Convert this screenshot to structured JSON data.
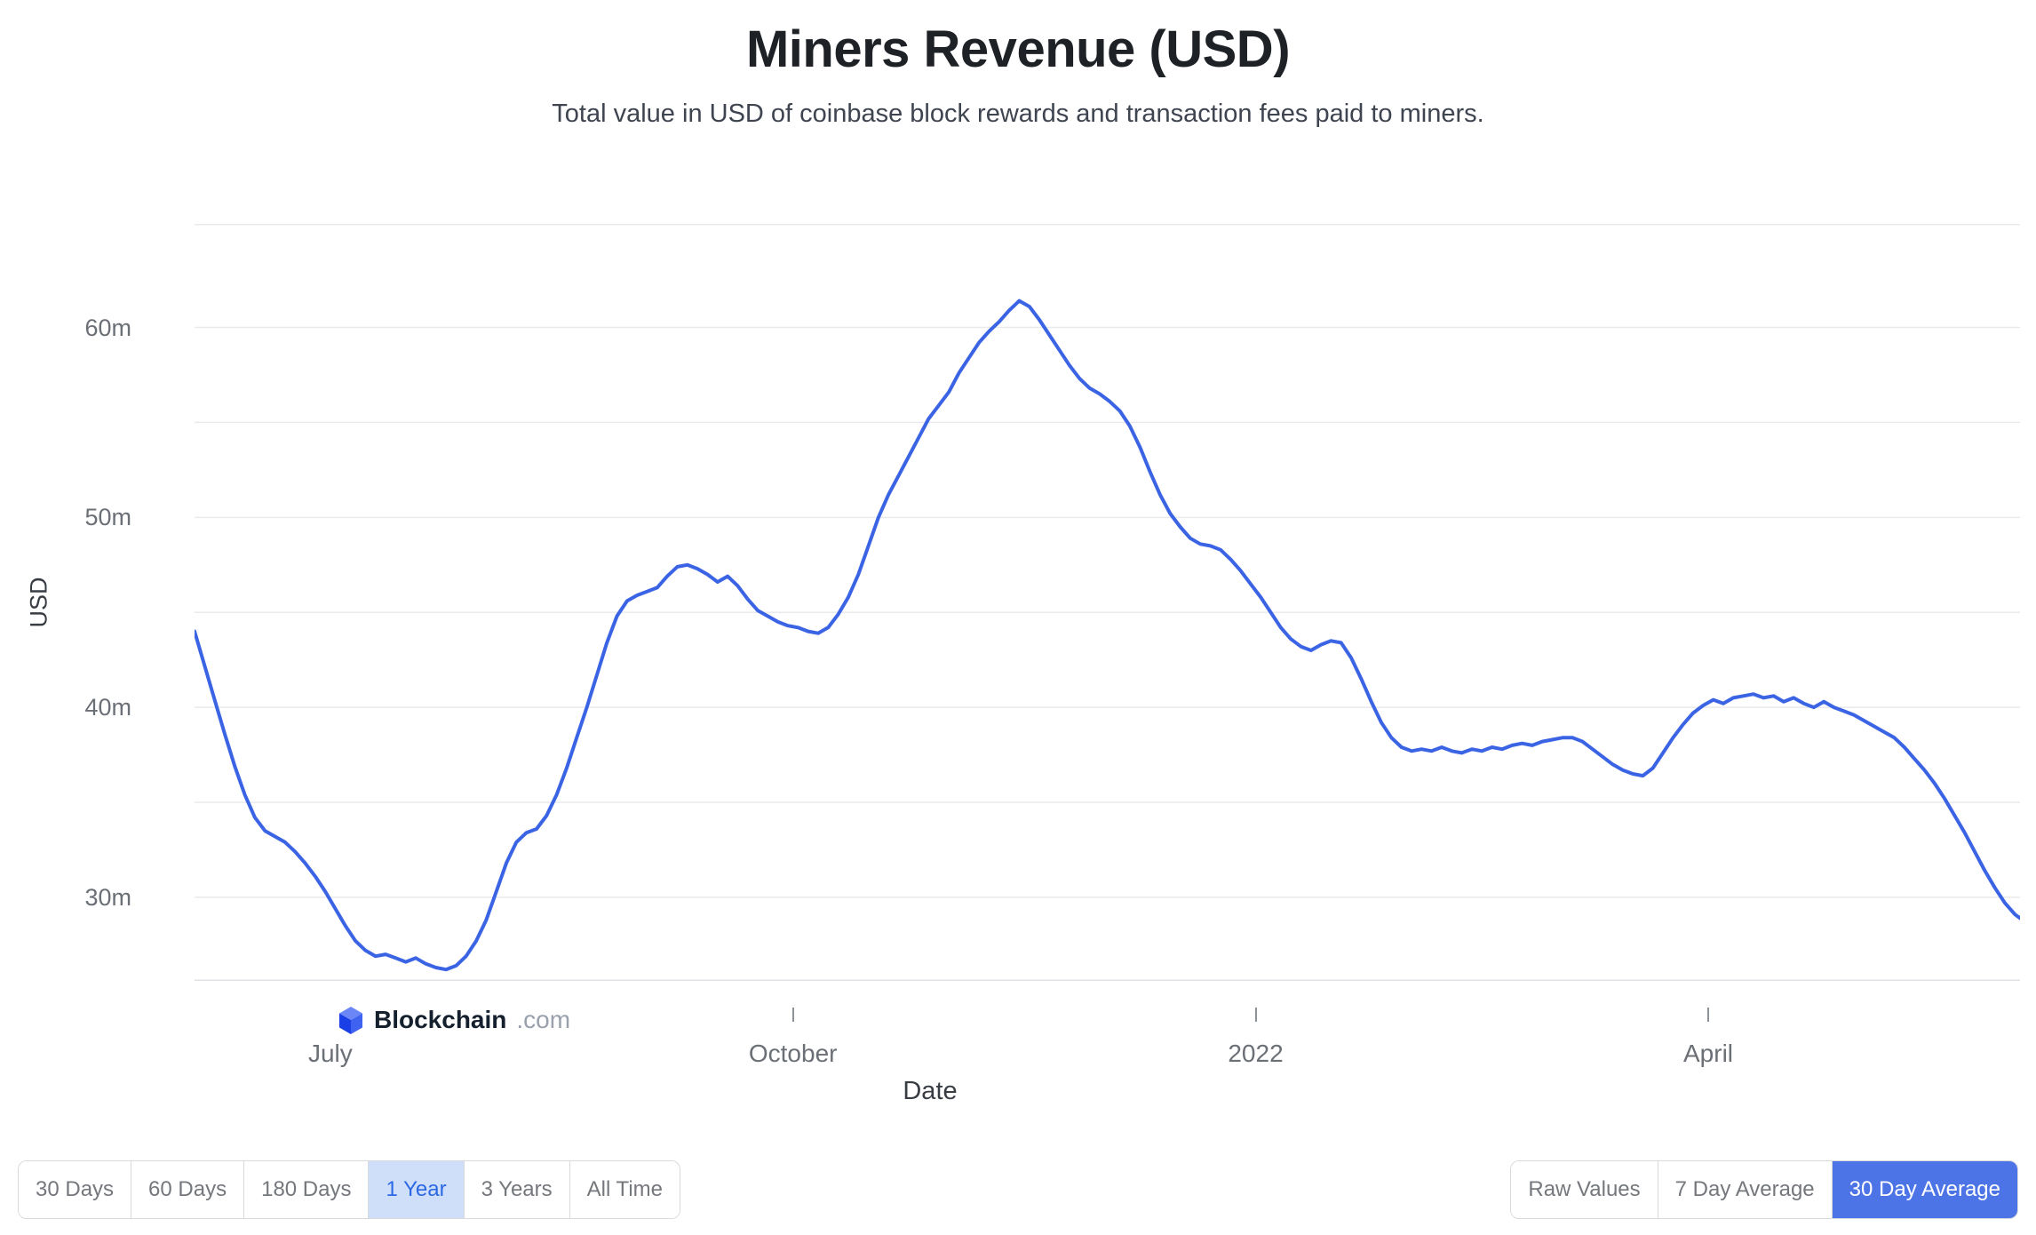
{
  "header": {
    "title": "Miners Revenue (USD)",
    "subtitle": "Total value in USD of coinbase block rewards and transaction fees paid to miners."
  },
  "watermark": {
    "brand": "Blockchain",
    "suffix": ".com"
  },
  "chart_data": {
    "type": "line",
    "title": "Miners Revenue (USD)",
    "subtitle": "Total value in USD of coinbase block rewards and transaction fees paid to miners.",
    "xlabel": "Date",
    "ylabel": "USD",
    "unit": "million USD per day (30 day average)",
    "series_name": "Miners Revenue",
    "line_color": "#3b64e4",
    "grid": true,
    "legend": "none",
    "x_unit": "days from chart start (1 year span, mid-2021 to mid-2022)",
    "x_range_days": [
      0,
      363
    ],
    "ylim": [
      25.6,
      65.45
    ],
    "y_gridlines": [
      30,
      35,
      40,
      45,
      50,
      55,
      60
    ],
    "y_ticks": [
      {
        "value": 30,
        "label": "30m"
      },
      {
        "value": 40,
        "label": "40m"
      },
      {
        "value": 50,
        "label": "50m"
      },
      {
        "value": 60,
        "label": "60m"
      }
    ],
    "x_ticks": [
      {
        "day": 27,
        "label": "July",
        "tick_mark": false
      },
      {
        "day": 119,
        "label": "October",
        "tick_mark": true
      },
      {
        "day": 211,
        "label": "2022",
        "tick_mark": true
      },
      {
        "day": 301,
        "label": "April",
        "tick_mark": true
      }
    ],
    "points": [
      [
        0,
        44.0
      ],
      [
        2,
        42.2
      ],
      [
        4,
        40.4
      ],
      [
        6,
        38.6
      ],
      [
        8,
        36.9
      ],
      [
        10,
        35.4
      ],
      [
        12,
        34.2
      ],
      [
        14,
        33.5
      ],
      [
        16,
        33.2
      ],
      [
        18,
        32.9
      ],
      [
        20,
        32.4
      ],
      [
        22,
        31.8
      ],
      [
        24,
        31.1
      ],
      [
        26,
        30.3
      ],
      [
        28,
        29.4
      ],
      [
        30,
        28.5
      ],
      [
        32,
        27.7
      ],
      [
        34,
        27.2
      ],
      [
        36,
        26.9
      ],
      [
        38,
        27.0
      ],
      [
        40,
        26.8
      ],
      [
        42,
        26.6
      ],
      [
        44,
        26.8
      ],
      [
        46,
        26.5
      ],
      [
        48,
        26.3
      ],
      [
        50,
        26.2
      ],
      [
        52,
        26.4
      ],
      [
        54,
        26.9
      ],
      [
        56,
        27.7
      ],
      [
        58,
        28.8
      ],
      [
        60,
        30.3
      ],
      [
        62,
        31.8
      ],
      [
        64,
        32.9
      ],
      [
        66,
        33.4
      ],
      [
        68,
        33.6
      ],
      [
        70,
        34.3
      ],
      [
        72,
        35.4
      ],
      [
        74,
        36.8
      ],
      [
        76,
        38.4
      ],
      [
        78,
        40.0
      ],
      [
        80,
        41.7
      ],
      [
        82,
        43.4
      ],
      [
        84,
        44.8
      ],
      [
        86,
        45.6
      ],
      [
        88,
        45.9
      ],
      [
        90,
        46.1
      ],
      [
        92,
        46.3
      ],
      [
        94,
        46.9
      ],
      [
        96,
        47.4
      ],
      [
        98,
        47.5
      ],
      [
        100,
        47.3
      ],
      [
        102,
        47.0
      ],
      [
        104,
        46.6
      ],
      [
        106,
        46.9
      ],
      [
        108,
        46.4
      ],
      [
        110,
        45.7
      ],
      [
        112,
        45.1
      ],
      [
        114,
        44.8
      ],
      [
        116,
        44.5
      ],
      [
        118,
        44.3
      ],
      [
        120,
        44.2
      ],
      [
        122,
        44.0
      ],
      [
        124,
        43.9
      ],
      [
        126,
        44.2
      ],
      [
        128,
        44.9
      ],
      [
        130,
        45.8
      ],
      [
        132,
        47.0
      ],
      [
        134,
        48.5
      ],
      [
        136,
        50.0
      ],
      [
        138,
        51.2
      ],
      [
        140,
        52.2
      ],
      [
        142,
        53.2
      ],
      [
        144,
        54.2
      ],
      [
        146,
        55.2
      ],
      [
        148,
        55.9
      ],
      [
        150,
        56.6
      ],
      [
        152,
        57.6
      ],
      [
        154,
        58.4
      ],
      [
        156,
        59.2
      ],
      [
        158,
        59.8
      ],
      [
        160,
        60.3
      ],
      [
        162,
        60.9
      ],
      [
        164,
        61.4
      ],
      [
        166,
        61.1
      ],
      [
        168,
        60.4
      ],
      [
        170,
        59.6
      ],
      [
        172,
        58.8
      ],
      [
        174,
        58.0
      ],
      [
        176,
        57.3
      ],
      [
        178,
        56.8
      ],
      [
        180,
        56.5
      ],
      [
        182,
        56.1
      ],
      [
        184,
        55.6
      ],
      [
        186,
        54.8
      ],
      [
        188,
        53.7
      ],
      [
        190,
        52.4
      ],
      [
        192,
        51.2
      ],
      [
        194,
        50.2
      ],
      [
        196,
        49.5
      ],
      [
        198,
        48.9
      ],
      [
        200,
        48.6
      ],
      [
        202,
        48.5
      ],
      [
        204,
        48.3
      ],
      [
        206,
        47.8
      ],
      [
        208,
        47.2
      ],
      [
        210,
        46.5
      ],
      [
        212,
        45.8
      ],
      [
        214,
        45.0
      ],
      [
        216,
        44.2
      ],
      [
        218,
        43.6
      ],
      [
        220,
        43.2
      ],
      [
        222,
        43.0
      ],
      [
        224,
        43.3
      ],
      [
        226,
        43.5
      ],
      [
        228,
        43.4
      ],
      [
        230,
        42.6
      ],
      [
        232,
        41.5
      ],
      [
        234,
        40.3
      ],
      [
        236,
        39.2
      ],
      [
        238,
        38.4
      ],
      [
        240,
        37.9
      ],
      [
        242,
        37.7
      ],
      [
        244,
        37.8
      ],
      [
        246,
        37.7
      ],
      [
        248,
        37.9
      ],
      [
        250,
        37.7
      ],
      [
        252,
        37.6
      ],
      [
        254,
        37.8
      ],
      [
        256,
        37.7
      ],
      [
        258,
        37.9
      ],
      [
        260,
        37.8
      ],
      [
        262,
        38.0
      ],
      [
        264,
        38.1
      ],
      [
        266,
        38.0
      ],
      [
        268,
        38.2
      ],
      [
        270,
        38.3
      ],
      [
        272,
        38.4
      ],
      [
        274,
        38.4
      ],
      [
        276,
        38.2
      ],
      [
        278,
        37.8
      ],
      [
        280,
        37.4
      ],
      [
        282,
        37.0
      ],
      [
        284,
        36.7
      ],
      [
        286,
        36.5
      ],
      [
        288,
        36.4
      ],
      [
        290,
        36.8
      ],
      [
        292,
        37.6
      ],
      [
        294,
        38.4
      ],
      [
        296,
        39.1
      ],
      [
        298,
        39.7
      ],
      [
        300,
        40.1
      ],
      [
        302,
        40.4
      ],
      [
        304,
        40.2
      ],
      [
        306,
        40.5
      ],
      [
        308,
        40.6
      ],
      [
        310,
        40.7
      ],
      [
        312,
        40.5
      ],
      [
        314,
        40.6
      ],
      [
        316,
        40.3
      ],
      [
        318,
        40.5
      ],
      [
        320,
        40.2
      ],
      [
        322,
        40.0
      ],
      [
        324,
        40.3
      ],
      [
        326,
        40.0
      ],
      [
        328,
        39.8
      ],
      [
        330,
        39.6
      ],
      [
        332,
        39.3
      ],
      [
        334,
        39.0
      ],
      [
        336,
        38.7
      ],
      [
        338,
        38.4
      ],
      [
        340,
        37.9
      ],
      [
        342,
        37.3
      ],
      [
        344,
        36.7
      ],
      [
        346,
        36.0
      ],
      [
        348,
        35.2
      ],
      [
        350,
        34.3
      ],
      [
        352,
        33.4
      ],
      [
        354,
        32.4
      ],
      [
        356,
        31.4
      ],
      [
        358,
        30.5
      ],
      [
        360,
        29.7
      ],
      [
        362,
        29.1
      ],
      [
        363,
        28.9
      ]
    ]
  },
  "controls": {
    "range_buttons": [
      {
        "label": "30 Days",
        "active": false
      },
      {
        "label": "60 Days",
        "active": false
      },
      {
        "label": "180 Days",
        "active": false
      },
      {
        "label": "1 Year",
        "active": true
      },
      {
        "label": "3 Years",
        "active": false
      },
      {
        "label": "All Time",
        "active": false
      }
    ],
    "aggregation_buttons": [
      {
        "label": "Raw Values",
        "active": false
      },
      {
        "label": "7 Day Average",
        "active": false
      },
      {
        "label": "30 Day Average",
        "active": true
      }
    ]
  },
  "colors": {
    "line": "#3b64e4",
    "gridline": "#e9eaec",
    "axis_line": "#dfe1e4",
    "tick_mark": "#8d9198",
    "title_text": "#1e2126",
    "subtitle_text": "#3e4450",
    "axis_tick_text": "#6b6f76",
    "axis_title_text": "#383c43",
    "button_text": "#74777c",
    "button_border": "#d8d9db",
    "active_light_bg": "#cfdef9",
    "active_light_text": "#2d68e4",
    "active_solid_bg": "#4d74e6",
    "active_solid_text": "#ffffff"
  }
}
